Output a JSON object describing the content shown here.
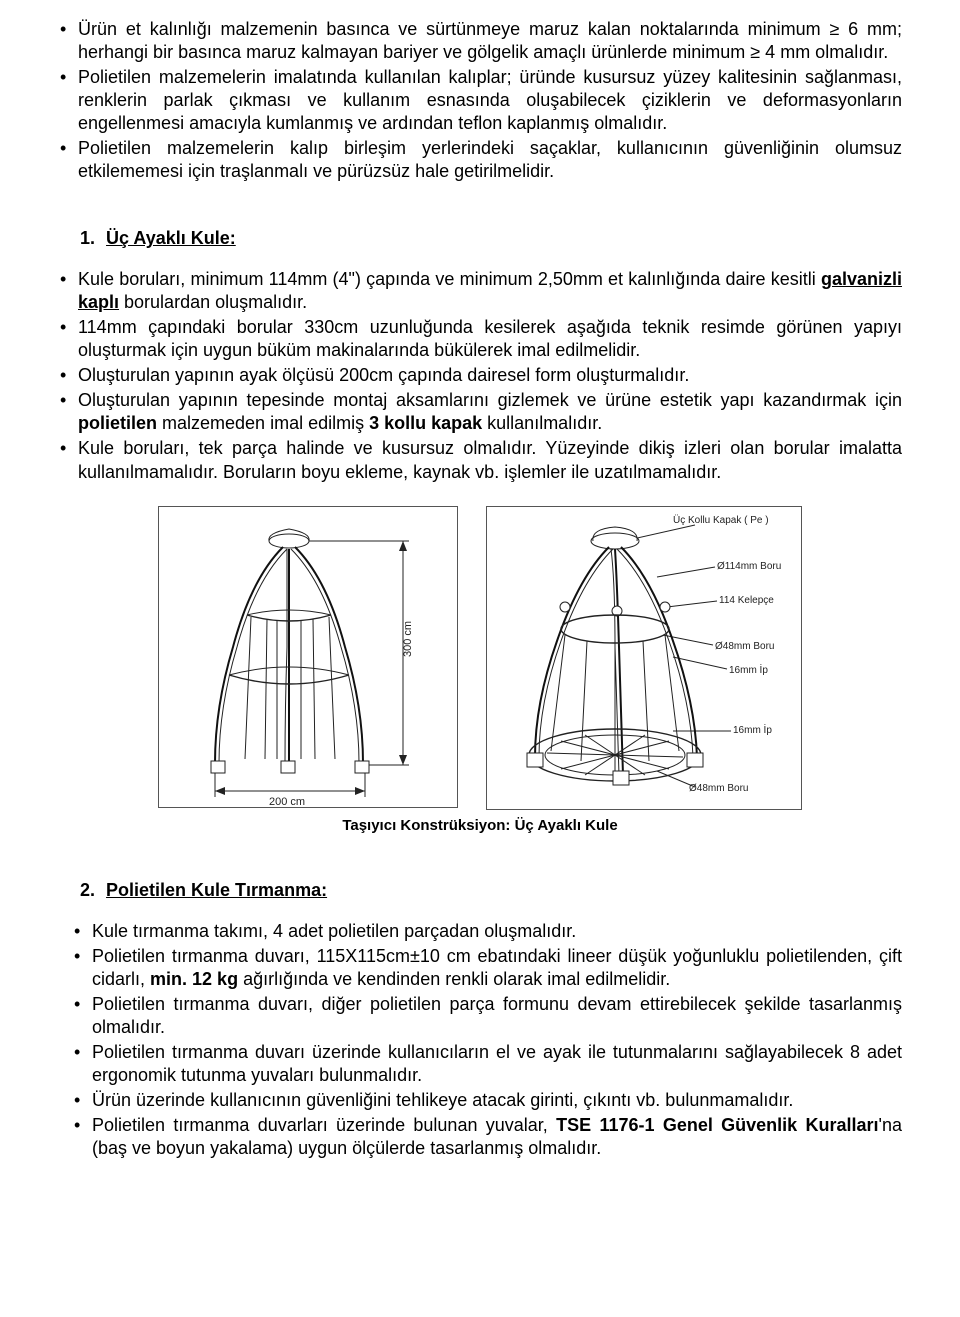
{
  "top_bullets": [
    {
      "html": "Ürün et kalınlığı malzemenin basınca ve sürtünmeye maruz kalan noktalarında minimum ≥ 6 mm; herhangi bir basınca maruz kalmayan bariyer ve gölgelik amaçlı ürünlerde minimum ≥ 4 mm olmalıdır."
    },
    {
      "html": "Polietilen malzemelerin imalatında kullanılan kalıplar; üründe kusursuz yüzey kalitesinin sağlanması, renklerin parlak çıkması ve kullanım esnasında oluşabilecek çiziklerin ve deformasyonların engellenmesi amacıyla kumlanmış ve ardından teflon kaplanmış olmalıdır."
    },
    {
      "html": "Polietilen malzemelerin kalıp birleşim yerlerindeki saçaklar, kullanıcının güvenliğinin olumsuz etkilememesi için traşlanmalı ve pürüzsüz hale getirilmelidir."
    }
  ],
  "section1": {
    "num": "1.",
    "title": "Üç Ayaklı Kule:",
    "bullets": [
      {
        "html": "Kule boruları, minimum 114mm (4\") çapında ve minimum 2,50mm et kalınlığında daire kesitli <span class='b u'>galvanizli kaplı</span> borulardan oluşmalıdır."
      },
      {
        "html": "114mm çapındaki borular 330cm uzunluğunda kesilerek aşağıda teknik resimde görünen yapıyı oluşturmak için uygun büküm makinalarında bükülerek imal edilmelidir."
      },
      {
        "html": "Oluşturulan yapının ayak ölçüsü 200cm çapında dairesel form oluşturmalıdır."
      },
      {
        "html": "Oluşturulan yapının tepesinde montaj aksamlarını gizlemek ve ürüne estetik yapı kazandırmak için <span class='b'>polietilen</span> malzemeden imal edilmiş <span class='b'>3 kollu kapak</span> kullanılmalıdır."
      },
      {
        "html": "Kule boruları, tek parça halinde ve kusursuz olmalıdır. Yüzeyinde dikiş izleri olan borular imalatta kullanılmamalıdır. Boruların boyu ekleme, kaynak vb. işlemler ile uzatılmamalıdır."
      }
    ]
  },
  "figure": {
    "caption": "Taşıyıcı Konstrüksiyon: Üç Ayaklı Kule",
    "panel_a": {
      "dim_width_label": "200 cm",
      "dim_height_label": "300 cm"
    },
    "panel_b": {
      "labels": {
        "top_cap": "Üç Kollu Kapak ( Pe )",
        "pipe114": "Ø114mm Boru",
        "clamp114": "114 Kelepçe",
        "pipe48_upper": "Ø48mm Boru",
        "rope16_upper": "16mm İp",
        "rope16_lower": "16mm İp",
        "pipe48_lower": "Ø48mm Boru"
      }
    },
    "colors": {
      "stroke": "#222222",
      "background": "#ffffff",
      "border": "#555555"
    }
  },
  "section2": {
    "num": "2.",
    "title": "Polietilen Kule Tırmanma:",
    "bullets": [
      {
        "html": "Kule tırmanma takımı, 4 adet polietilen parçadan oluşmalıdır."
      },
      {
        "html": "Polietilen tırmanma duvarı, 115X115cm±10 cm ebatındaki lineer düşük yoğunluklu polietilenden, çift cidarlı, <span class='b'>min. 12 kg</span> ağırlığında ve kendinden renkli olarak imal edilmelidir."
      },
      {
        "html": "Polietilen tırmanma duvarı, diğer polietilen parça formunu devam ettirebilecek şekilde tasarlanmış olmalıdır."
      },
      {
        "html": "Polietilen tırmanma duvarı üzerinde kullanıcıların el ve ayak ile tutunmalarını sağlayabilecek 8 adet ergonomik tutunma yuvaları bulunmalıdır."
      },
      {
        "html": "Ürün üzerinde kullanıcının güvenliğini tehlikeye atacak girinti, çıkıntı vb. bulunmamalıdır."
      },
      {
        "html": "Polietilen tırmanma duvarları üzerinde bulunan yuvalar, <span class='b'>TSE 1176-1 Genel Güvenlik Kuralları</span>'na (baş ve boyun yakalama) uygun ölçülerde tasarlanmış olmalıdır."
      }
    ]
  }
}
